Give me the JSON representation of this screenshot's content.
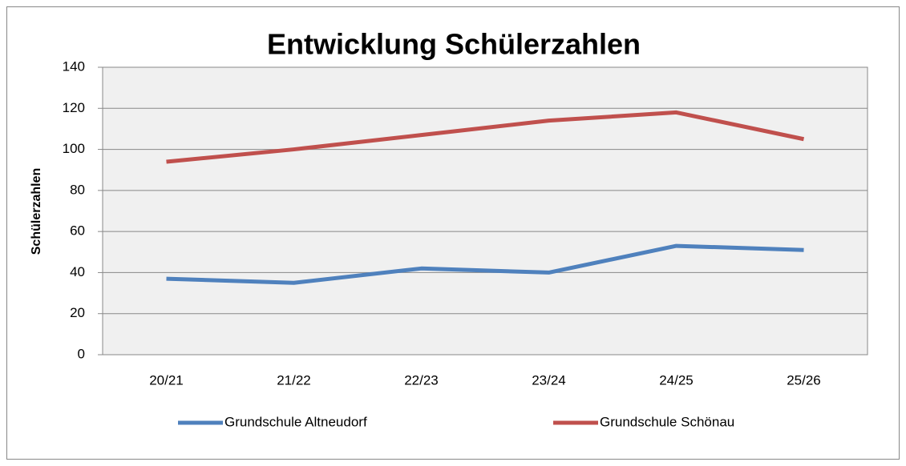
{
  "chart_data": {
    "type": "line",
    "title": "Entwicklung Schülerzahlen",
    "ylabel": "Schülerzahlen",
    "categories": [
      "20/21",
      "21/22",
      "22/23",
      "23/24",
      "24/25",
      "25/26"
    ],
    "series": [
      {
        "name": "Grundschule Altneudorf",
        "color": "#4f81bd",
        "values": [
          37,
          35,
          42,
          40,
          53,
          51
        ]
      },
      {
        "name": "Grundschule Schönau",
        "color": "#c0504d",
        "values": [
          94,
          100,
          107,
          114,
          118,
          105
        ]
      }
    ],
    "ylim": [
      0,
      140
    ],
    "yticks": [
      0,
      20,
      40,
      60,
      80,
      100,
      120,
      140
    ],
    "grid": true,
    "legend": "bottom"
  }
}
